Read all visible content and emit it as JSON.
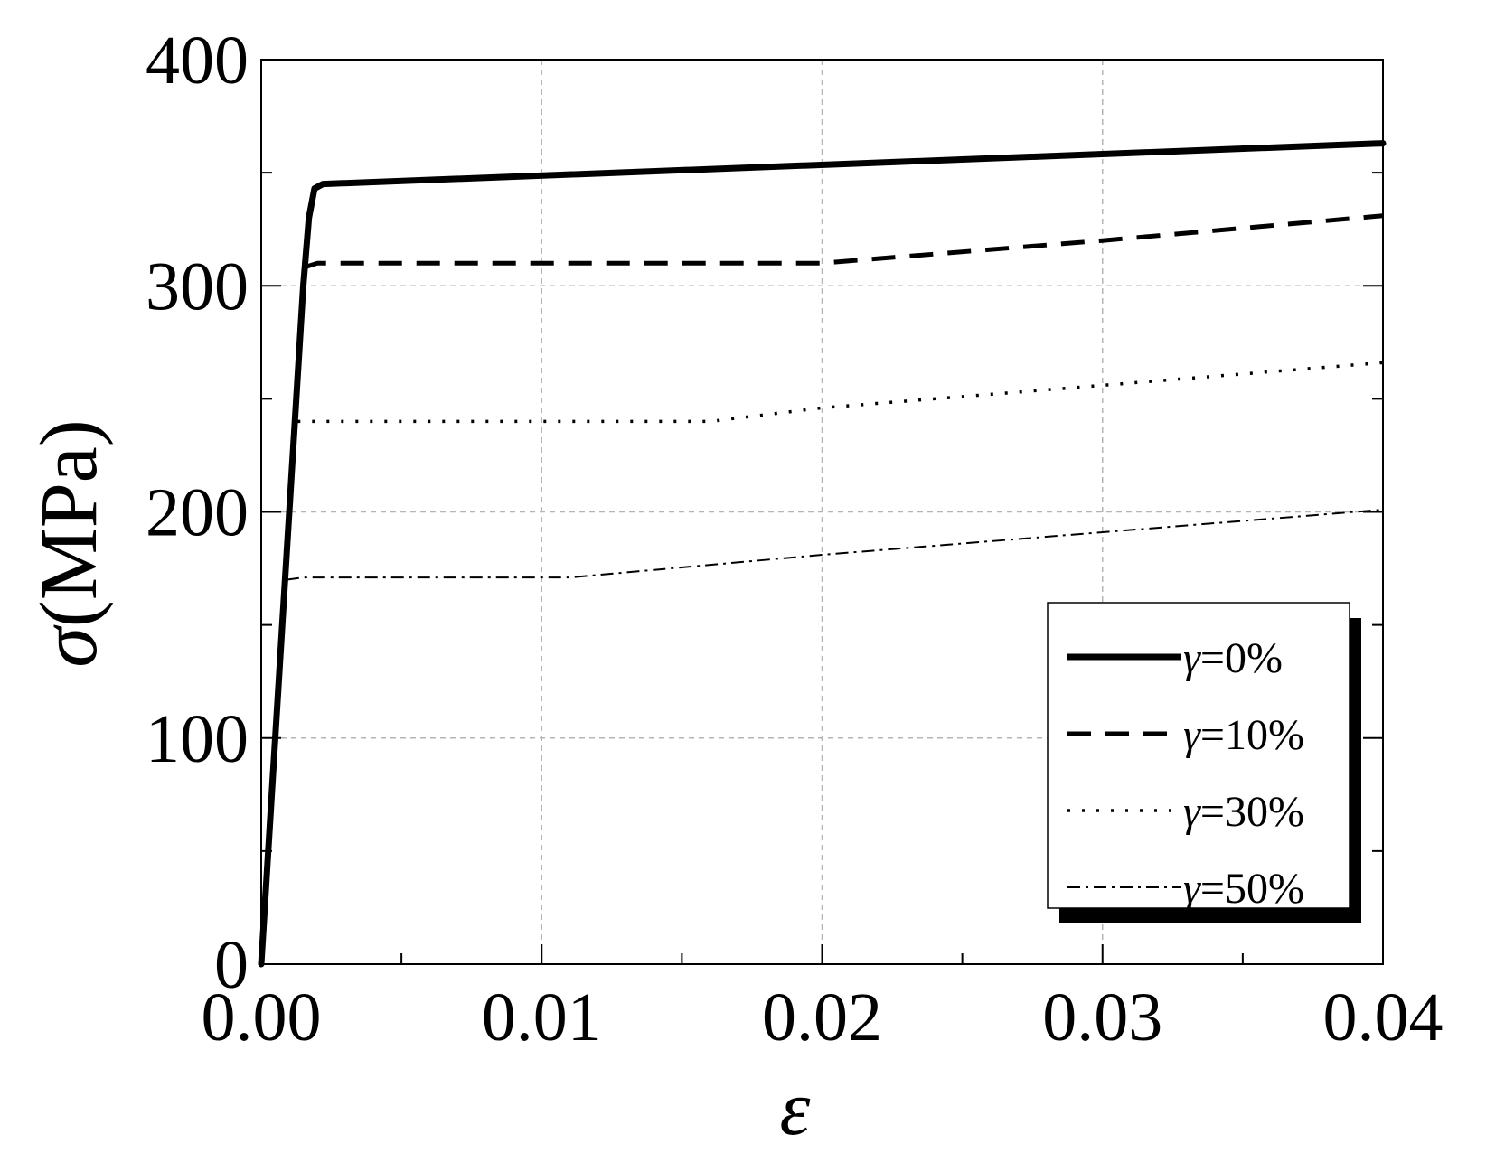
{
  "chart_data": {
    "type": "line",
    "xlabel": "ε",
    "ylabel": "σ(MPa)",
    "xlim": [
      0,
      0.04
    ],
    "ylim": [
      0,
      400
    ],
    "xticks": [
      "0.00",
      "0.01",
      "0.02",
      "0.03",
      "0.04"
    ],
    "yticks": [
      "0",
      "100",
      "200",
      "300",
      "400"
    ],
    "grid": true,
    "legend_position": "bottom-right",
    "series": [
      {
        "name": "γ=0%",
        "style": "solid-thick",
        "color": "#000000",
        "x": [
          0,
          0.0015,
          0.0017,
          0.0019,
          0.0022,
          0.04
        ],
        "y": [
          0,
          300,
          330,
          343,
          345,
          363
        ]
      },
      {
        "name": "γ=10%",
        "style": "dashed",
        "color": "#000000",
        "x": [
          0.0015,
          0.002,
          0.004,
          0.02,
          0.03,
          0.04
        ],
        "y": [
          308,
          310,
          310,
          310,
          320,
          331
        ]
      },
      {
        "name": "γ=30%",
        "style": "dotted",
        "color": "#000000",
        "x": [
          0.0013,
          0.002,
          0.016,
          0.02,
          0.03,
          0.04
        ],
        "y": [
          240,
          240,
          240,
          246,
          256,
          266
        ]
      },
      {
        "name": "γ=50%",
        "style": "dash-dot",
        "color": "#000000",
        "x": [
          0.0009,
          0.0015,
          0.011,
          0.02,
          0.03,
          0.04
        ],
        "y": [
          170,
          171,
          171,
          181,
          191,
          201
        ]
      }
    ]
  }
}
